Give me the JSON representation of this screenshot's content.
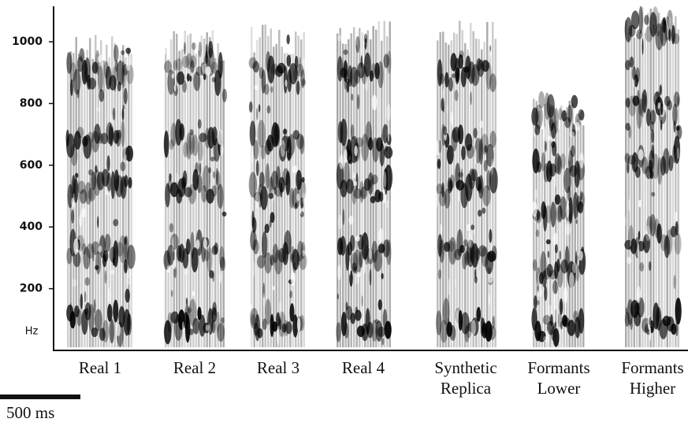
{
  "chart_data": {
    "type": "spectrogram",
    "ylabel": "Hz",
    "categories": [
      "Real 1",
      "Real 2",
      "Real 3",
      "Real 4",
      "Synthetic Replica",
      "Formants Lower",
      "Formants Higher"
    ],
    "ylim": [
      0,
      1115
    ],
    "yticks": [
      200,
      400,
      600,
      800,
      1000
    ],
    "scale_bar": {
      "label": "500 ms"
    }
  }
}
